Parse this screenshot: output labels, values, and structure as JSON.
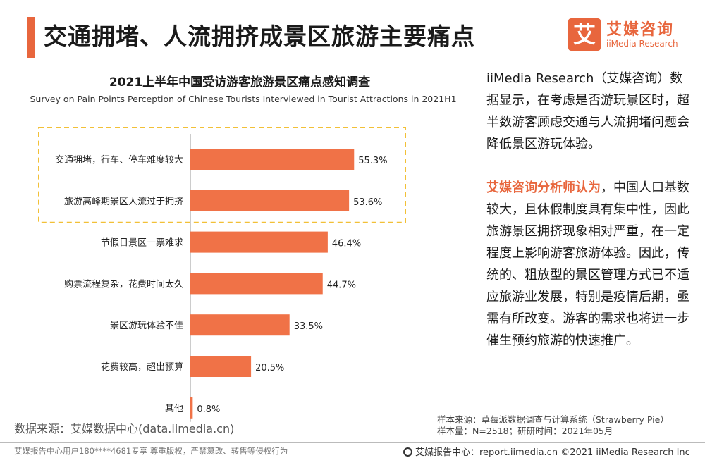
{
  "header": {
    "title": "交通拥堵、人流拥挤成景区旅游主要痛点",
    "logo_mark": "艾",
    "logo_cn": "艾媒咨询",
    "logo_en": "iiMedia Research"
  },
  "chart_data": {
    "type": "bar",
    "orientation": "horizontal",
    "title": "2021上半年中国受访游客旅游景区痛点感知调查",
    "subtitle": "Survey on Pain Points Perception of Chinese Tourists Interviewed in Tourist Attractions  in 2021H1",
    "categories": [
      "交通拥堵，行车、停车难度较大",
      "旅游高峰期景区人流过于拥挤",
      "节假日景区一票难求",
      "购票流程复杂，花费时间太久",
      "景区游玩体验不佳",
      "花费较高，超出预算",
      "其他"
    ],
    "values": [
      55.3,
      53.6,
      46.4,
      44.7,
      33.5,
      20.5,
      0.8
    ],
    "value_labels": [
      "55.3%",
      "53.6%",
      "46.4%",
      "44.7%",
      "33.5%",
      "20.5%",
      "0.8%"
    ],
    "unit": "%",
    "highlighted": [
      0,
      1
    ],
    "bar_color": "#f07247",
    "highlight_box_color": "#f2c037",
    "xlim": [
      0,
      60
    ]
  },
  "analysis": {
    "para1": "iiMedia Research（艾媒咨询）数据显示，在考虑是否游玩景区时，超半数游客顾虑交通与人流拥堵问题会降低景区游玩体验。",
    "para2_highlight": "艾媒咨询分析师认为",
    "para2_rest": "，中国人口基数较大，且休假制度具有集中性，因此旅游景区拥挤现象相对严重，在一定程度上影响游客旅游体验。因此，传统的、粗放型的景区管理方式已不适应旅游业发展，特别是疫情后期，亟需有所改变。游客的需求也将进一步催生预约旅游的快速推广。"
  },
  "data_source": "数据来源：艾媒数据中心(data.iimedia.cn)",
  "sample": {
    "source": "样本来源：草莓派数据调查与计算系统（Strawberry Pie）",
    "size_line": "样本量：N=2518；研研时间：2021年05月"
  },
  "footer": {
    "left": "艾媒报告中心用户180****4681专享 尊重版权，严禁篡改、转售等侵权行为",
    "right": "艾媒报告中心：report.iimedia.cn  ©2021  iiMedia Research  Inc"
  },
  "colors": {
    "accent": "#e8663d",
    "bar": "#f07247",
    "highlight_box": "#f2c037"
  }
}
